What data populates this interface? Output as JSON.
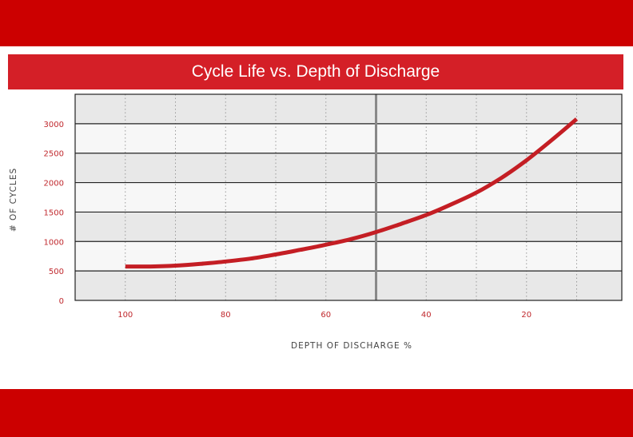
{
  "chart_data": {
    "type": "line",
    "title": "Cycle Life vs. Depth of Discharge",
    "xlabel": "DEPTH OF DISCHARGE %",
    "ylabel": "# OF CYCLES",
    "x_ticks": [
      100,
      80,
      60,
      40,
      20
    ],
    "y_ticks": [
      0,
      500,
      1000,
      1500,
      2000,
      2500,
      3000
    ],
    "xlim": [
      110,
      1
    ],
    "ylim": [
      0,
      3500
    ],
    "x_reversed": true,
    "grid": true,
    "reference_line_x": 50,
    "series": [
      {
        "x": [
          100,
          95,
          90,
          85,
          80,
          75,
          70,
          65,
          60,
          55,
          50,
          45,
          40,
          35,
          30,
          25,
          20,
          15,
          10
        ],
        "values": [
          575,
          575,
          590,
          620,
          660,
          710,
          780,
          860,
          945,
          1040,
          1160,
          1300,
          1450,
          1630,
          1830,
          2080,
          2380,
          2720,
          3080
        ]
      }
    ]
  },
  "colors": {
    "band": "#cc0000",
    "title_bar": "#d41f27",
    "line": "#c41e24",
    "plot_bg_dark": "#e8e8e8",
    "plot_bg_light": "#f7f7f7",
    "tick_text": "#c0282d",
    "reference_line": "#888888"
  }
}
